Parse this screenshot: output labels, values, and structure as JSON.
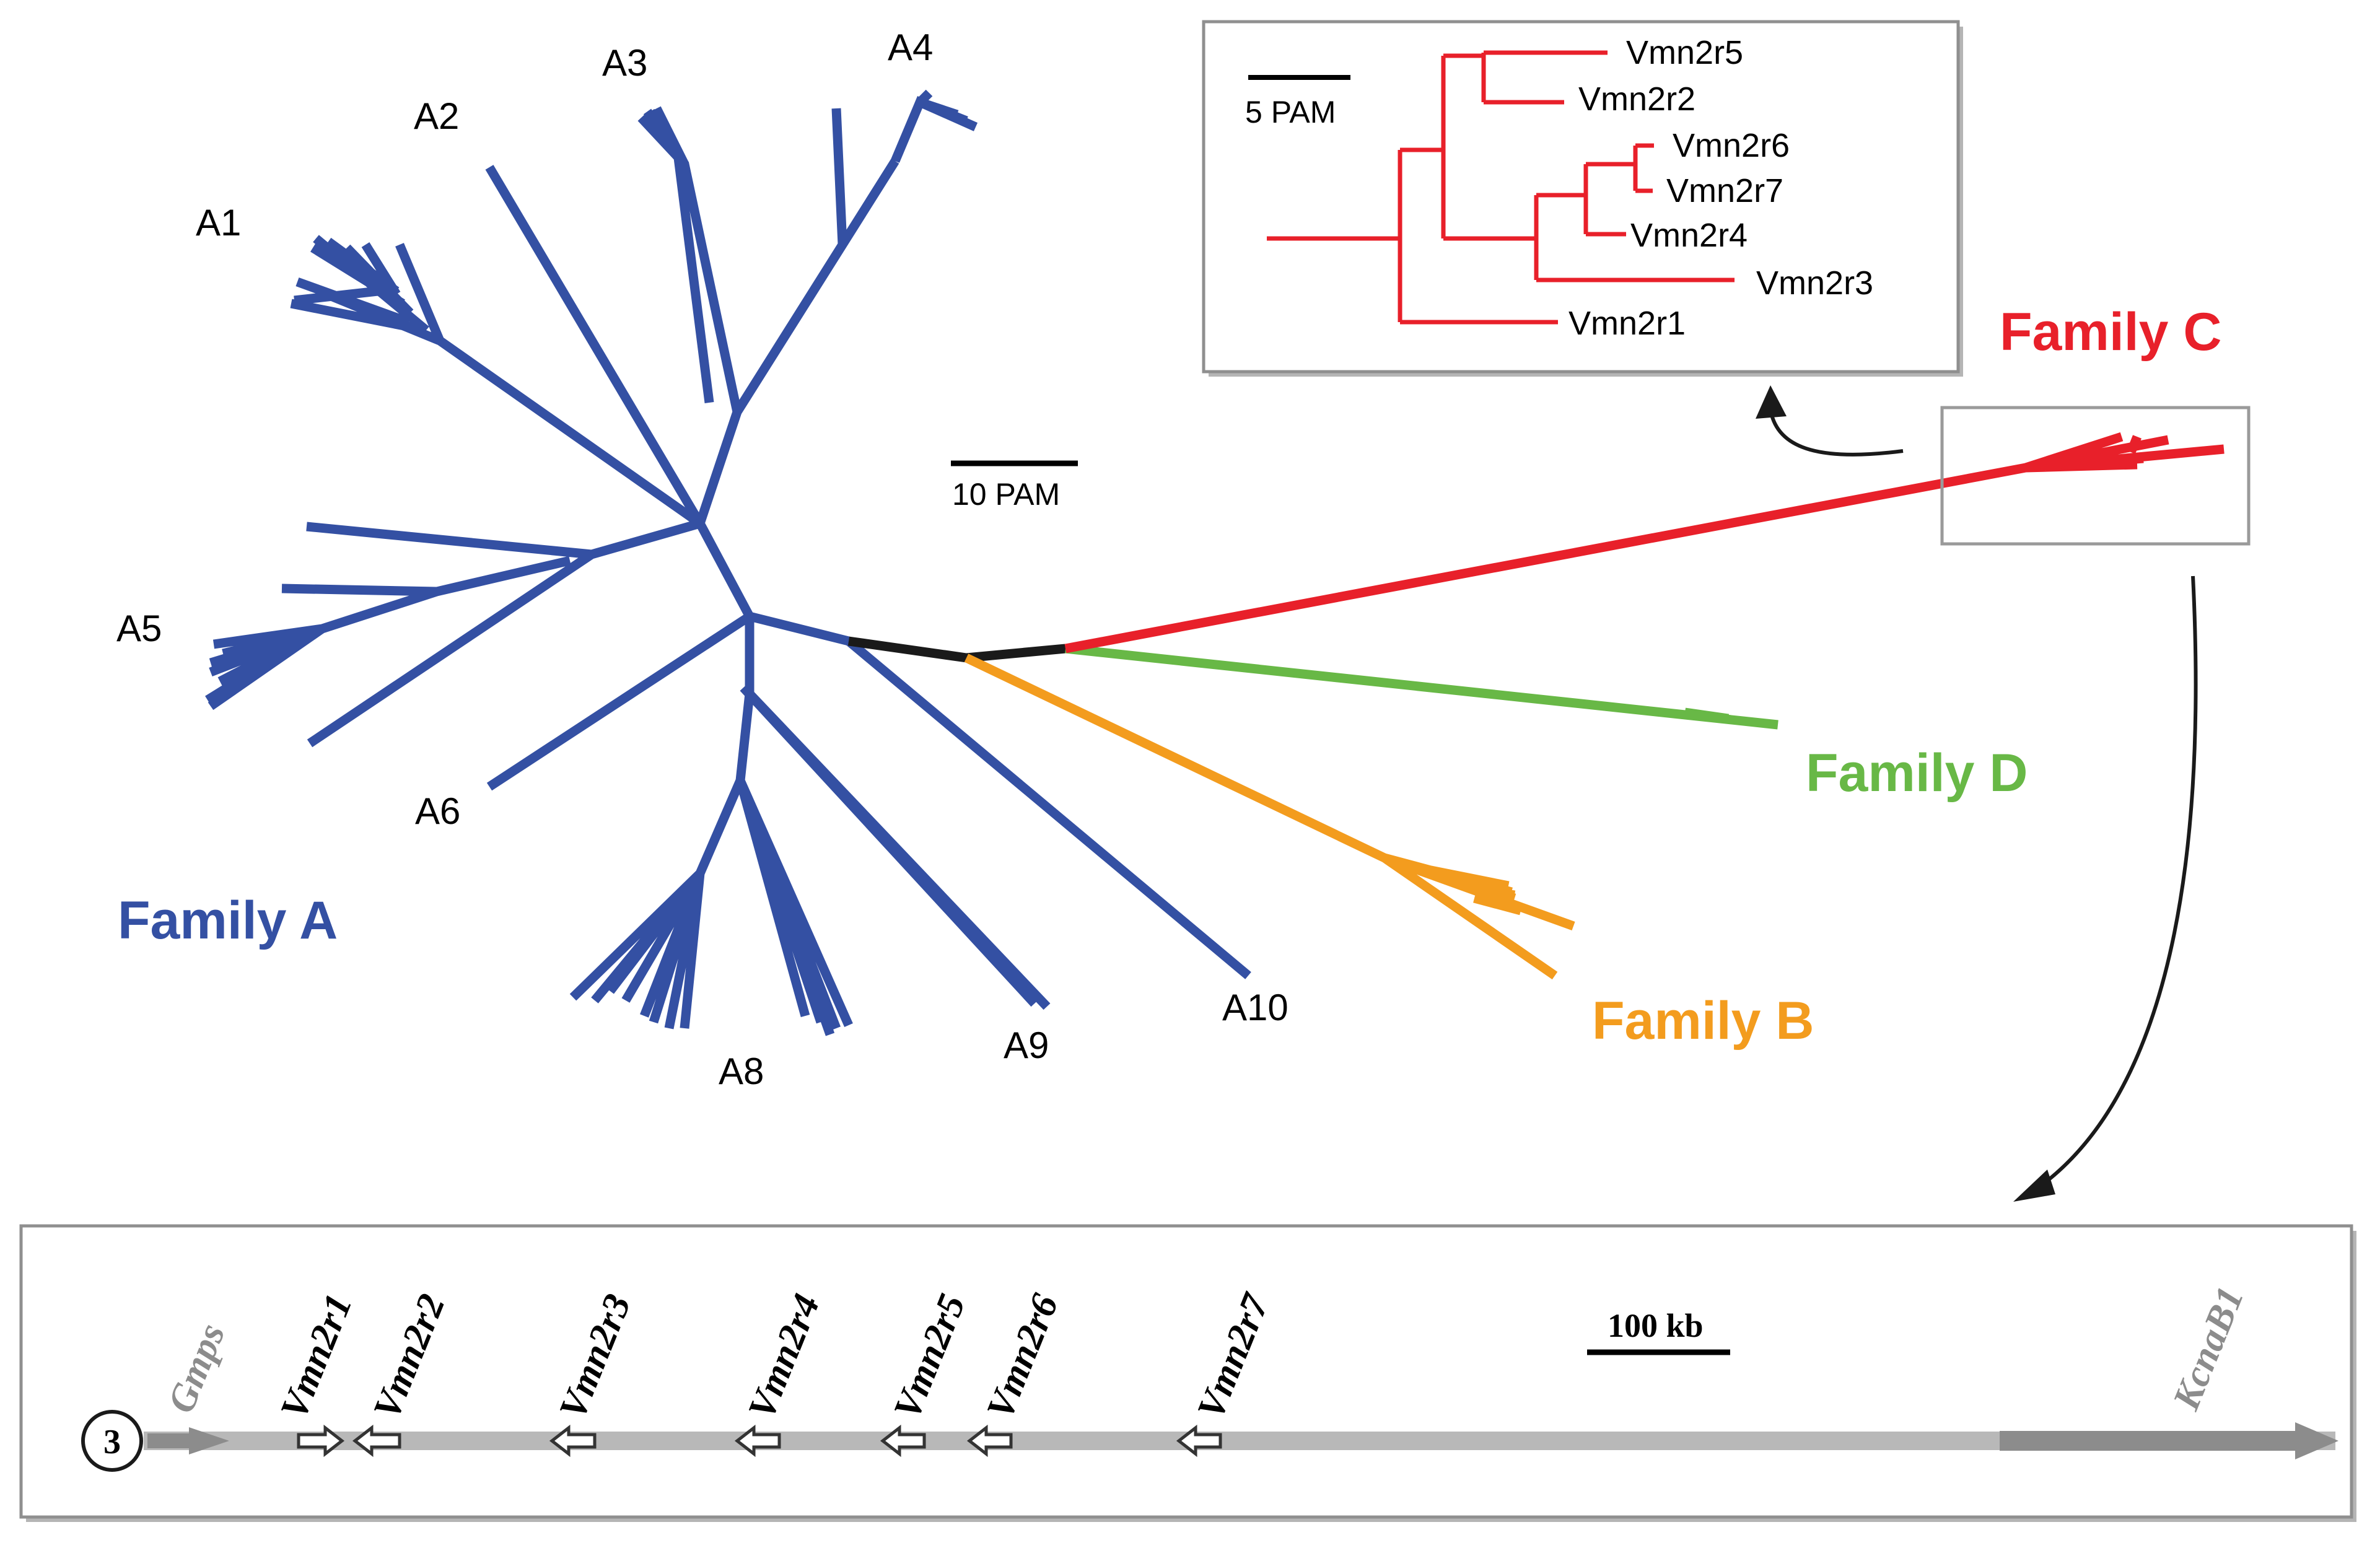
{
  "colors": {
    "family_a": "#3450a3",
    "family_b": "#f39c1e",
    "family_c": "#e8202a",
    "family_d": "#68b846",
    "root": "#1a1a1a",
    "locus_bar": "#b8b8b8",
    "flank_gene": "#8c8c8c",
    "box_border": "#8f8f8f"
  },
  "tree": {
    "clades": [
      "A1",
      "A2",
      "A3",
      "A4",
      "A5",
      "A6",
      "A8",
      "A9",
      "A10"
    ],
    "families": {
      "a": "Family A",
      "b": "Family B",
      "c": "Family C",
      "d": "Family D"
    },
    "scale_label": "10 PAM"
  },
  "inset": {
    "scale_label": "5 PAM",
    "leaves": [
      "Vmn2r5",
      "Vmn2r2",
      "Vmn2r6",
      "Vmn2r7",
      "Vmn2r4",
      "Vmn2r3",
      "Vmn2r1"
    ]
  },
  "locus": {
    "chromosome": "3",
    "left_gene": "Gmps",
    "right_gene": "KcnaB1",
    "genes": [
      "Vmn2r1",
      "Vmn2r2",
      "Vmn2r3",
      "Vmn2r4",
      "Vmn2r5",
      "Vmn2r6",
      "Vmn2r7"
    ],
    "scale_label": "100 kb",
    "icons": {
      "gene_arrow": "hollow-left-arrow-icon",
      "flank_arrow": "solid-right-arrow-icon"
    }
  }
}
